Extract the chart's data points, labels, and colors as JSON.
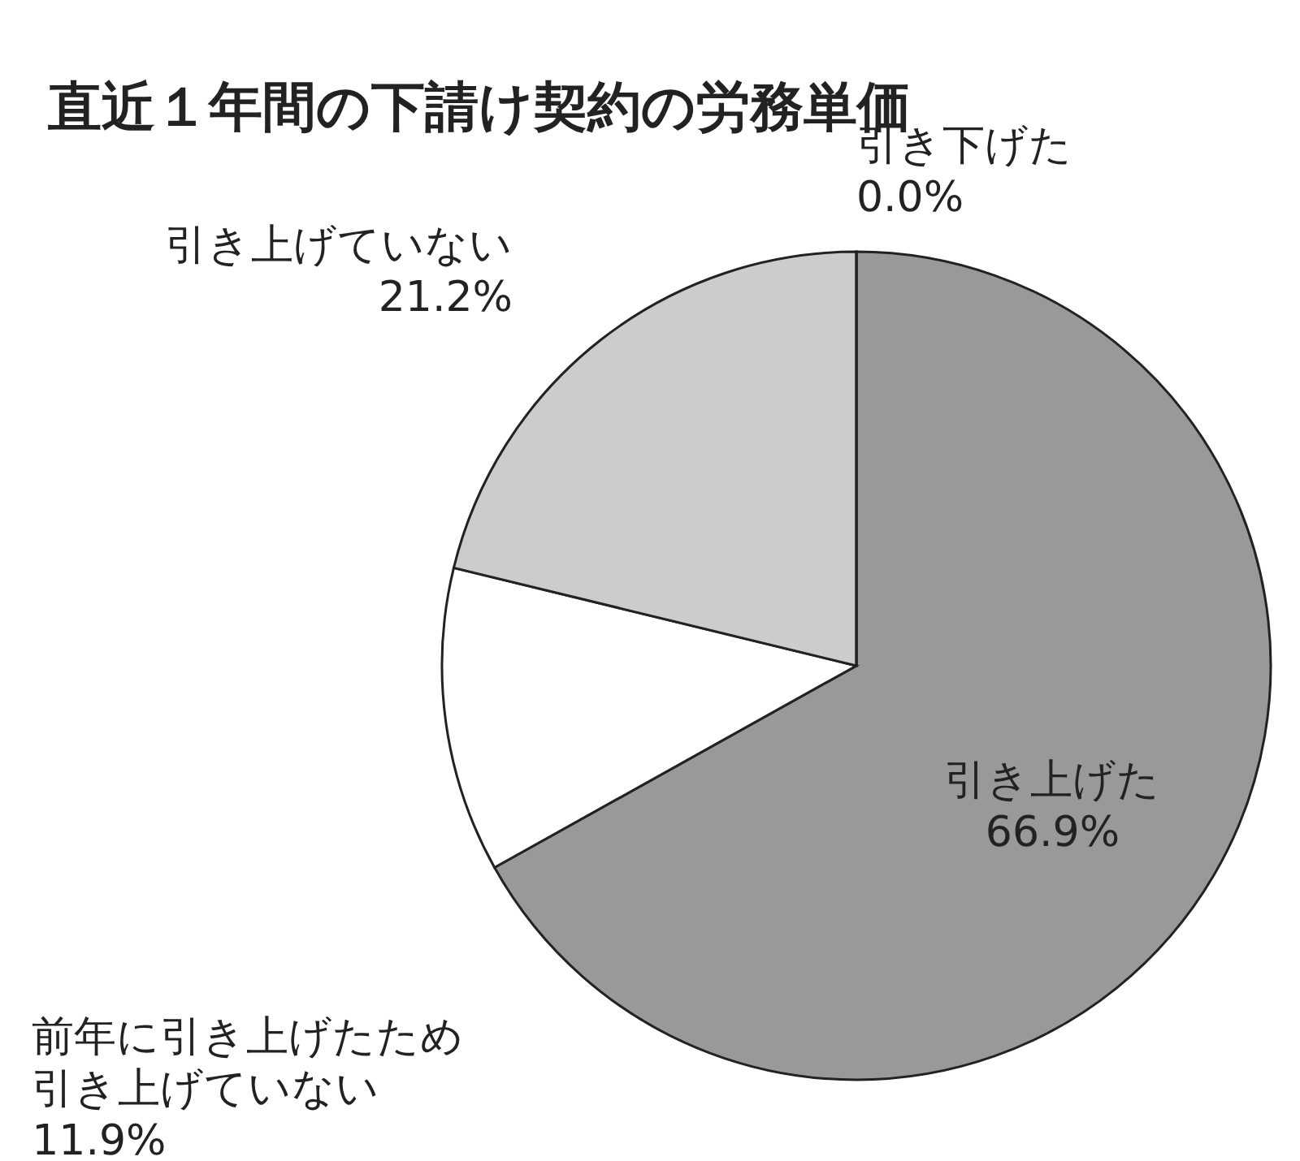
{
  "chart_data": {
    "type": "pie",
    "title": "直近１年間の下請け契約の労務単価",
    "categories": [
      "引き上げた",
      "前年に引き上げたため引き上げていない",
      "引き上げていない",
      "引き下げた"
    ],
    "value_labels": [
      "66.9%",
      "11.9%",
      "21.2%",
      "0.0%"
    ],
    "values": [
      66.9,
      11.9,
      21.2,
      0.0
    ],
    "colors": [
      "#999999",
      "#ffffff",
      "#cccccc",
      "#ffffff"
    ],
    "legend": false
  }
}
